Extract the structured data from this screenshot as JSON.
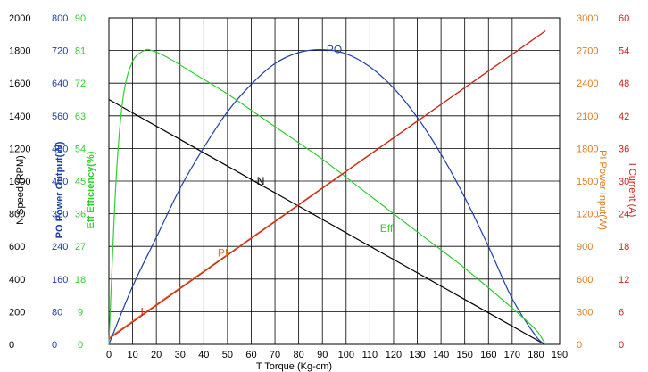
{
  "colors": {
    "speed": "#000000",
    "power_output": "#1f3fa6",
    "efficiency": "#33cc33",
    "power_input": "#e07b20",
    "current": "#cc2222",
    "grid": "#000000"
  },
  "chart_data": {
    "type": "line",
    "grid": true,
    "x": {
      "label_symbol": "T",
      "label": "Torque (Kg-cm)",
      "range": [
        0,
        190
      ],
      "ticks": [
        0,
        10,
        20,
        30,
        40,
        50,
        60,
        70,
        80,
        90,
        100,
        110,
        120,
        130,
        140,
        150,
        160,
        170,
        180,
        190
      ]
    },
    "axes": [
      {
        "key": "speed",
        "symbol": "N",
        "label": "Speed (RPM)",
        "side": "left",
        "range": [
          0,
          2000
        ],
        "ticks": [
          0,
          200,
          400,
          600,
          800,
          1000,
          1200,
          1400,
          1600,
          1800,
          2000
        ]
      },
      {
        "key": "power_output",
        "symbol": "PO",
        "label": "Power Output(W)",
        "side": "left",
        "range": [
          0,
          800
        ],
        "ticks": [
          0,
          80,
          160,
          240,
          320,
          400,
          480,
          560,
          640,
          720,
          800
        ]
      },
      {
        "key": "efficiency",
        "symbol": "Eff",
        "label": "Efficiency(%)",
        "side": "left",
        "range": [
          0,
          90
        ],
        "ticks": [
          0,
          9,
          18,
          27,
          36,
          45,
          54,
          63,
          72,
          81,
          90
        ]
      },
      {
        "key": "power_input",
        "symbol": "PI",
        "label": "Power Input(W)",
        "side": "right",
        "range": [
          0,
          3000
        ],
        "ticks": [
          0,
          300,
          600,
          900,
          1200,
          1500,
          1800,
          2100,
          2400,
          2700,
          3000
        ]
      },
      {
        "key": "current",
        "symbol": "I",
        "label": "Current (A)",
        "side": "right",
        "range": [
          0,
          60
        ],
        "ticks": [
          0,
          6,
          12,
          18,
          24,
          30,
          36,
          42,
          48,
          54,
          60
        ]
      }
    ],
    "series": [
      {
        "name": "N",
        "axis": "speed",
        "points": [
          [
            0,
            1500
          ],
          [
            10,
            1418
          ],
          [
            30,
            1255
          ],
          [
            60,
            1010
          ],
          [
            90,
            765
          ],
          [
            120,
            520
          ],
          [
            150,
            275
          ],
          [
            180,
            30
          ],
          [
            184,
            0
          ]
        ]
      },
      {
        "name": "PO",
        "axis": "power_output",
        "points": [
          [
            0,
            0
          ],
          [
            10,
            142
          ],
          [
            20,
            262
          ],
          [
            30,
            382
          ],
          [
            40,
            482
          ],
          [
            50,
            570
          ],
          [
            60,
            637
          ],
          [
            70,
            688
          ],
          [
            80,
            715
          ],
          [
            90,
            722
          ],
          [
            100,
            712
          ],
          [
            110,
            680
          ],
          [
            120,
            628
          ],
          [
            130,
            556
          ],
          [
            140,
            466
          ],
          [
            150,
            360
          ],
          [
            160,
            240
          ],
          [
            170,
            112
          ],
          [
            180,
            20
          ],
          [
            184,
            0
          ]
        ]
      },
      {
        "name": "Eff",
        "axis": "efficiency",
        "points": [
          [
            0,
            0
          ],
          [
            3,
            45
          ],
          [
            6,
            68
          ],
          [
            10,
            78
          ],
          [
            15,
            81
          ],
          [
            18,
            81
          ],
          [
            25,
            79
          ],
          [
            35,
            75
          ],
          [
            50,
            69
          ],
          [
            70,
            60
          ],
          [
            90,
            51
          ],
          [
            110,
            41
          ],
          [
            130,
            31
          ],
          [
            150,
            21
          ],
          [
            170,
            10
          ],
          [
            180,
            4
          ],
          [
            184,
            0
          ]
        ]
      },
      {
        "name": "PI",
        "axis": "power_input",
        "points": [
          [
            0,
            60
          ],
          [
            184,
            2880
          ]
        ]
      },
      {
        "name": "I",
        "axis": "current",
        "points": [
          [
            0,
            1
          ],
          [
            184,
            57.6
          ]
        ]
      }
    ],
    "curve_labels": [
      {
        "text": "PO",
        "series": "PO",
        "at": [
          95,
          722
        ]
      },
      {
        "text": "N",
        "series": "N",
        "at": [
          64,
          1000
        ]
      },
      {
        "text": "Eff",
        "series": "Eff",
        "at": [
          117,
          32
        ]
      },
      {
        "text": "PI",
        "series": "PI",
        "at": [
          48,
          840
        ]
      },
      {
        "text": "I",
        "series": "I",
        "at": [
          14,
          6
        ]
      }
    ]
  }
}
